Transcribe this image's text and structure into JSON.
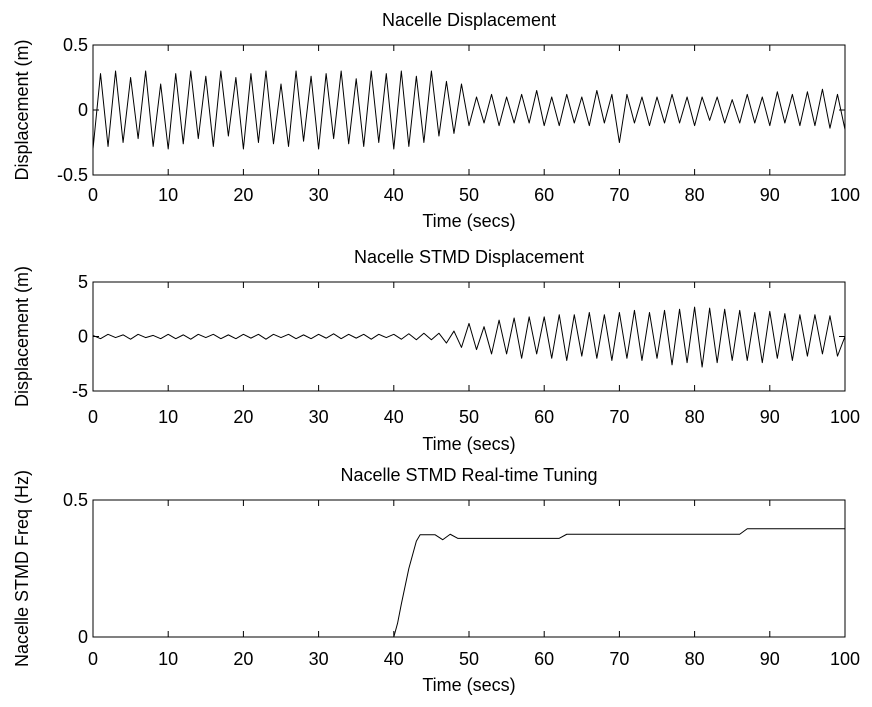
{
  "chart_data": [
    {
      "type": "line",
      "title": "Nacelle Displacement",
      "xlabel": "Time (secs)",
      "ylabel": "Displacement (m)",
      "xlim": [
        0,
        100
      ],
      "ylim": [
        -0.5,
        0.5
      ],
      "xticks": [
        "0",
        "10",
        "20",
        "30",
        "40",
        "50",
        "60",
        "70",
        "80",
        "90",
        "100"
      ],
      "yticks": [
        "-0.5",
        "0",
        "0.5"
      ],
      "grid": false,
      "line_color": "#000000",
      "series": [
        {
          "x": [
            0,
            1,
            2,
            3,
            4,
            5,
            6,
            7,
            8,
            9,
            10,
            11,
            12,
            13,
            14,
            15,
            16,
            17,
            18,
            19,
            20,
            21,
            22,
            23,
            24,
            25,
            26,
            27,
            28,
            29,
            30,
            31,
            32,
            33,
            34,
            35,
            36,
            37,
            38,
            39,
            40,
            41,
            42,
            43,
            44,
            45,
            46,
            47,
            48,
            49,
            50,
            51,
            52,
            53,
            54,
            55,
            56,
            57,
            58,
            59,
            60,
            61,
            62,
            63,
            64,
            65,
            66,
            67,
            68,
            69,
            70,
            71,
            72,
            73,
            74,
            75,
            76,
            77,
            78,
            79,
            80,
            81,
            82,
            83,
            84,
            85,
            86,
            87,
            88,
            89,
            90,
            91,
            92,
            93,
            94,
            95,
            96,
            97,
            98,
            99,
            100
          ],
          "values": [
            -0.3,
            0.28,
            -0.28,
            0.3,
            -0.25,
            0.25,
            -0.22,
            0.3,
            -0.28,
            0.2,
            -0.3,
            0.28,
            -0.26,
            0.3,
            -0.22,
            0.26,
            -0.28,
            0.3,
            -0.2,
            0.25,
            -0.3,
            0.28,
            -0.25,
            0.3,
            -0.26,
            0.2,
            -0.28,
            0.3,
            -0.24,
            0.26,
            -0.3,
            0.28,
            -0.22,
            0.3,
            -0.26,
            0.24,
            -0.28,
            0.3,
            -0.25,
            0.28,
            -0.3,
            0.3,
            -0.28,
            0.26,
            -0.25,
            0.3,
            -0.2,
            0.22,
            -0.18,
            0.2,
            -0.12,
            0.1,
            -0.1,
            0.12,
            -0.12,
            0.1,
            -0.1,
            0.12,
            -0.1,
            0.15,
            -0.12,
            0.1,
            -0.12,
            0.12,
            -0.1,
            0.1,
            -0.12,
            0.15,
            -0.1,
            0.12,
            -0.25,
            0.12,
            -0.1,
            0.1,
            -0.12,
            0.1,
            -0.1,
            0.12,
            -0.1,
            0.1,
            -0.12,
            0.1,
            -0.08,
            0.1,
            -0.1,
            0.08,
            -0.1,
            0.12,
            -0.1,
            0.1,
            -0.12,
            0.14,
            -0.1,
            0.12,
            -0.12,
            0.14,
            -0.12,
            0.16,
            -0.14,
            0.12,
            -0.15
          ]
        }
      ]
    },
    {
      "type": "line",
      "title": "Nacelle STMD Displacement",
      "xlabel": "Time (secs)",
      "ylabel": "Displacement (m)",
      "xlim": [
        0,
        100
      ],
      "ylim": [
        -5,
        5
      ],
      "xticks": [
        "0",
        "10",
        "20",
        "30",
        "40",
        "50",
        "60",
        "70",
        "80",
        "90",
        "100"
      ],
      "yticks": [
        "-5",
        "0",
        "5"
      ],
      "grid": false,
      "line_color": "#000000",
      "series": [
        {
          "x": [
            0,
            1,
            2,
            3,
            4,
            5,
            6,
            7,
            8,
            9,
            10,
            11,
            12,
            13,
            14,
            15,
            16,
            17,
            18,
            19,
            20,
            21,
            22,
            23,
            24,
            25,
            26,
            27,
            28,
            29,
            30,
            31,
            32,
            33,
            34,
            35,
            36,
            37,
            38,
            39,
            40,
            41,
            42,
            43,
            44,
            45,
            46,
            47,
            48,
            49,
            50,
            51,
            52,
            53,
            54,
            55,
            56,
            57,
            58,
            59,
            60,
            61,
            62,
            63,
            64,
            65,
            66,
            67,
            68,
            69,
            70,
            71,
            72,
            73,
            74,
            75,
            76,
            77,
            78,
            79,
            80,
            81,
            82,
            83,
            84,
            85,
            86,
            87,
            88,
            89,
            90,
            91,
            92,
            93,
            94,
            95,
            96,
            97,
            98,
            99,
            100
          ],
          "values": [
            0.1,
            -0.2,
            0.2,
            -0.1,
            0.15,
            -0.25,
            0.2,
            -0.1,
            0.1,
            -0.2,
            0.2,
            -0.2,
            0.15,
            -0.25,
            0.2,
            -0.1,
            0.2,
            -0.2,
            0.15,
            -0.2,
            0.2,
            -0.15,
            0.2,
            -0.25,
            0.2,
            -0.1,
            0.2,
            -0.2,
            0.15,
            -0.2,
            0.2,
            -0.15,
            0.25,
            -0.2,
            0.2,
            -0.15,
            0.2,
            -0.25,
            0.2,
            -0.1,
            0.2,
            -0.25,
            0.25,
            -0.3,
            0.3,
            -0.3,
            0.3,
            -0.6,
            0.5,
            -1.0,
            1.2,
            -1.2,
            0.9,
            -1.6,
            1.5,
            -1.6,
            1.7,
            -2.0,
            1.8,
            -1.6,
            1.8,
            -2.0,
            2.0,
            -2.2,
            2.0,
            -1.8,
            2.2,
            -2.0,
            2.0,
            -2.2,
            2.2,
            -2.0,
            2.4,
            -2.2,
            2.2,
            -2.0,
            2.4,
            -2.6,
            2.5,
            -2.4,
            2.7,
            -2.8,
            2.6,
            -2.4,
            2.5,
            -2.2,
            2.4,
            -2.2,
            2.2,
            -2.4,
            2.3,
            -2.0,
            2.1,
            -2.2,
            2.0,
            -1.8,
            2.0,
            -1.6,
            1.9,
            -1.8,
            0.0
          ]
        }
      ]
    },
    {
      "type": "line",
      "title": "Nacelle STMD Real-time Tuning",
      "xlabel": "Time (secs)",
      "ylabel": "Nacelle STMD Freq (Hz)",
      "xlim": [
        0,
        100
      ],
      "ylim": [
        0,
        0.5
      ],
      "xticks": [
        "0",
        "10",
        "20",
        "30",
        "40",
        "50",
        "60",
        "70",
        "80",
        "90",
        "100"
      ],
      "yticks": [
        "0",
        "0.5"
      ],
      "grid": false,
      "line_color": "#000000",
      "series": [
        {
          "x": [
            40.0,
            40.5,
            41.0,
            42.0,
            43.0,
            43.5,
            45.5,
            46.5,
            47.5,
            48.5,
            62.0,
            63.0,
            86.0,
            87.0,
            100.0
          ],
          "values": [
            0.0,
            0.05,
            0.12,
            0.25,
            0.35,
            0.373,
            0.373,
            0.355,
            0.375,
            0.36,
            0.36,
            0.375,
            0.375,
            0.395,
            0.395
          ]
        }
      ]
    }
  ]
}
